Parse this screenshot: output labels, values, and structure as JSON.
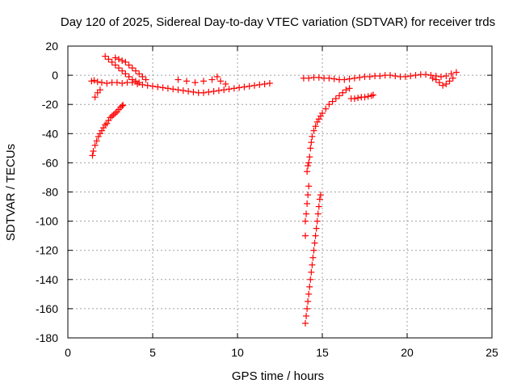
{
  "chart_data": {
    "type": "scatter",
    "title": "Day 120 of 2025, Sidereal Day-to-day VTEC variation (SDTVAR) for receiver trds",
    "xlabel": "GPS time / hours",
    "ylabel": "SDTVAR / TECUs",
    "xlim": [
      0,
      25
    ],
    "ylim": [
      -180,
      20
    ],
    "xticks": [
      0,
      5,
      10,
      15,
      20,
      25
    ],
    "yticks": [
      -180,
      -160,
      -140,
      -120,
      -100,
      -80,
      -60,
      -40,
      -20,
      0,
      20
    ],
    "grid": true,
    "legend": "none",
    "marker": "plus",
    "color": "#ff0000",
    "series": [
      {
        "values": [
          [
            1.4,
            -4
          ],
          [
            1.55,
            -3.5
          ],
          [
            1.75,
            -4.5
          ],
          [
            2.0,
            -5
          ],
          [
            2.3,
            -5.5
          ],
          [
            2.6,
            -5
          ],
          [
            2.9,
            -5
          ],
          [
            3.2,
            -5.5
          ],
          [
            3.5,
            -5
          ],
          [
            3.8,
            -5
          ],
          [
            4.1,
            -6
          ],
          [
            4.4,
            -6.5
          ],
          [
            4.7,
            -7
          ],
          [
            5.0,
            -7.5
          ],
          [
            5.3,
            -8
          ],
          [
            5.6,
            -8.5
          ],
          [
            5.9,
            -9
          ],
          [
            6.2,
            -9.5
          ],
          [
            6.5,
            -10
          ],
          [
            6.8,
            -10.5
          ],
          [
            7.1,
            -11
          ],
          [
            7.4,
            -11.5
          ],
          [
            7.7,
            -12
          ],
          [
            8.0,
            -12
          ],
          [
            8.3,
            -11.5
          ],
          [
            8.6,
            -11
          ],
          [
            8.9,
            -10.5
          ],
          [
            9.2,
            -10
          ],
          [
            9.5,
            -9.5
          ],
          [
            9.8,
            -9
          ],
          [
            10.1,
            -8.5
          ],
          [
            10.4,
            -8
          ],
          [
            10.7,
            -7.5
          ],
          [
            11.0,
            -7
          ],
          [
            11.3,
            -6.5
          ],
          [
            11.6,
            -6
          ],
          [
            11.9,
            -5.5
          ]
        ]
      },
      {
        "values": [
          [
            2.2,
            13
          ],
          [
            2.4,
            11
          ],
          [
            2.6,
            9
          ],
          [
            2.8,
            7
          ],
          [
            3.0,
            5
          ],
          [
            3.2,
            3
          ],
          [
            3.4,
            1
          ],
          [
            3.6,
            -1
          ],
          [
            3.8,
            -3
          ],
          [
            4.0,
            -4
          ],
          [
            4.2,
            -5
          ],
          [
            2.8,
            12
          ],
          [
            3.0,
            11
          ],
          [
            3.2,
            10
          ],
          [
            3.4,
            9
          ],
          [
            3.6,
            7
          ],
          [
            3.8,
            5
          ],
          [
            4.0,
            3
          ],
          [
            4.2,
            1
          ],
          [
            4.4,
            -1
          ],
          [
            4.6,
            -3
          ]
        ]
      },
      {
        "values": [
          [
            1.45,
            -55
          ],
          [
            1.5,
            -52
          ],
          [
            1.6,
            -48
          ],
          [
            1.7,
            -45
          ],
          [
            1.8,
            -42
          ],
          [
            1.9,
            -40
          ],
          [
            2.0,
            -38
          ],
          [
            2.1,
            -36
          ],
          [
            2.2,
            -34
          ],
          [
            2.3,
            -33
          ],
          [
            2.4,
            -31
          ],
          [
            2.5,
            -29
          ],
          [
            2.6,
            -28
          ],
          [
            2.7,
            -27
          ],
          [
            2.8,
            -26
          ],
          [
            2.9,
            -25
          ],
          [
            3.0,
            -23.5
          ],
          [
            3.1,
            -22
          ],
          [
            3.2,
            -21
          ],
          [
            3.25,
            -20.5
          ],
          [
            1.6,
            -15
          ],
          [
            1.75,
            -12
          ],
          [
            1.9,
            -10
          ]
        ]
      },
      {
        "values": [
          [
            6.5,
            -3
          ],
          [
            7.0,
            -4
          ],
          [
            7.5,
            -5
          ],
          [
            8.0,
            -4
          ],
          [
            8.5,
            -3
          ],
          [
            8.8,
            -1
          ],
          [
            9.0,
            -4
          ],
          [
            9.3,
            -6
          ]
        ]
      },
      {
        "values": [
          [
            14.0,
            -110
          ],
          [
            14.0,
            -100
          ],
          [
            14.05,
            -95
          ],
          [
            14.1,
            -88
          ],
          [
            14.15,
            -82
          ],
          [
            14.2,
            -76
          ],
          [
            14.1,
            -66
          ],
          [
            14.15,
            -62
          ],
          [
            14.2,
            -60
          ],
          [
            14.25,
            -56
          ],
          [
            14.3,
            -50
          ],
          [
            14.35,
            -46
          ],
          [
            14.4,
            -42
          ],
          [
            14.5,
            -38
          ],
          [
            14.6,
            -35
          ],
          [
            14.7,
            -32
          ],
          [
            14.8,
            -30
          ],
          [
            14.9,
            -28
          ],
          [
            15.0,
            -26
          ],
          [
            15.2,
            -23
          ],
          [
            15.4,
            -20
          ],
          [
            15.6,
            -18
          ],
          [
            15.8,
            -16
          ],
          [
            16.0,
            -14
          ],
          [
            16.2,
            -12
          ],
          [
            16.4,
            -10
          ],
          [
            16.6,
            -9
          ]
        ]
      },
      {
        "values": [
          [
            14.0,
            -170
          ],
          [
            14.05,
            -165
          ],
          [
            14.1,
            -160
          ],
          [
            14.15,
            -155
          ],
          [
            14.2,
            -150
          ],
          [
            14.25,
            -145
          ],
          [
            14.3,
            -140
          ],
          [
            14.35,
            -135
          ],
          [
            14.4,
            -130
          ],
          [
            14.45,
            -125
          ],
          [
            14.5,
            -120
          ],
          [
            14.55,
            -115
          ],
          [
            14.6,
            -110
          ],
          [
            14.65,
            -105
          ],
          [
            14.7,
            -100
          ],
          [
            14.75,
            -95
          ],
          [
            14.8,
            -90
          ],
          [
            14.85,
            -85
          ],
          [
            14.9,
            -82
          ]
        ]
      },
      {
        "values": [
          [
            13.9,
            -2
          ],
          [
            14.2,
            -2
          ],
          [
            14.5,
            -1.5
          ],
          [
            14.8,
            -1.5
          ],
          [
            15.1,
            -2
          ],
          [
            15.4,
            -2
          ],
          [
            15.7,
            -2.5
          ],
          [
            16.0,
            -3
          ],
          [
            16.3,
            -3
          ],
          [
            16.6,
            -2.5
          ],
          [
            16.9,
            -2
          ],
          [
            17.2,
            -1.5
          ],
          [
            17.5,
            -1
          ],
          [
            17.8,
            -1
          ],
          [
            18.1,
            -0.5
          ],
          [
            18.4,
            -0.5
          ],
          [
            18.7,
            0
          ],
          [
            19.0,
            0
          ],
          [
            19.3,
            -0.5
          ],
          [
            19.6,
            -1
          ],
          [
            19.9,
            -1
          ],
          [
            20.2,
            -0.5
          ],
          [
            20.5,
            0
          ],
          [
            20.8,
            0.5
          ],
          [
            21.1,
            0.5
          ],
          [
            21.4,
            0
          ],
          [
            21.7,
            -0.5
          ],
          [
            22.0,
            -1
          ],
          [
            22.3,
            -0.5
          ],
          [
            22.6,
            1
          ],
          [
            22.9,
            2
          ]
        ]
      },
      {
        "values": [
          [
            21.5,
            -2
          ],
          [
            21.7,
            -3
          ],
          [
            21.9,
            -5
          ],
          [
            22.1,
            -7
          ],
          [
            22.3,
            -6
          ],
          [
            22.5,
            -4
          ],
          [
            22.7,
            -2
          ]
        ]
      },
      {
        "values": [
          [
            16.7,
            -16
          ],
          [
            16.9,
            -16
          ],
          [
            17.1,
            -15.5
          ],
          [
            17.3,
            -15
          ],
          [
            17.5,
            -15
          ],
          [
            17.7,
            -14.5
          ],
          [
            17.9,
            -14
          ],
          [
            18.0,
            -13.5
          ]
        ]
      }
    ]
  }
}
